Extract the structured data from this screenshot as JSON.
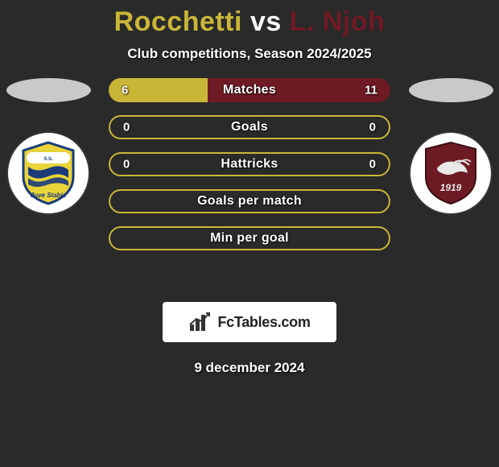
{
  "title": {
    "p1": "Rocchetti",
    "vs": "vs",
    "p2": "L. Njoh"
  },
  "subtitle": "Club competitions, Season 2024/2025",
  "colors": {
    "p1": "#c9b638",
    "p2": "#6e1a25",
    "bar_outline": "#c9b638",
    "head_oval": "#c9c9c9",
    "background": "#2a2a2a",
    "title_p1": "#c9b638",
    "title_p2": "#6e1a25"
  },
  "bars": [
    {
      "label": "Matches",
      "left": "6",
      "right": "11",
      "type": "split",
      "left_pct": 35,
      "right_pct": 65,
      "left_color": "#c9b638",
      "right_color": "#6e1a25"
    },
    {
      "label": "Goals",
      "left": "0",
      "right": "0",
      "type": "outline"
    },
    {
      "label": "Hattricks",
      "left": "0",
      "right": "0",
      "type": "outline"
    },
    {
      "label": "Goals per match",
      "left": "",
      "right": "",
      "type": "outline"
    },
    {
      "label": "Min per goal",
      "left": "",
      "right": "",
      "type": "outline"
    }
  ],
  "brand": "FcTables.com",
  "date": "9 december 2024",
  "teams": {
    "left": {
      "name": "Juve Stabia",
      "shield_bg_primary": "#e9d43a",
      "shield_bg_secondary": "#1a3a7a",
      "text": "Juve Stabia"
    },
    "right": {
      "name": "Salernitana",
      "shield_bg": "#6e1a25",
      "year": "1919"
    }
  }
}
